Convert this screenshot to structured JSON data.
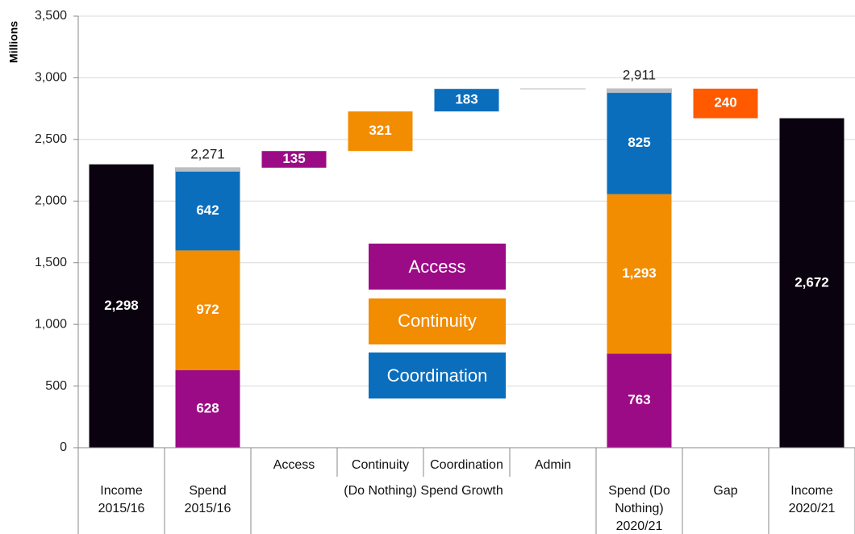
{
  "chart_data": {
    "type": "waterfall",
    "ylabel": "Millions",
    "ylim": [
      0,
      3500
    ],
    "yticks": [
      0,
      500,
      {
        "value": 1000,
        "label": "1,000"
      },
      {
        "value": 1500,
        "label": "1,500"
      },
      {
        "value": 2000,
        "label": "2,000"
      },
      {
        "value": 2500,
        "label": "2,500"
      },
      {
        "value": 3000,
        "label": "3,000"
      },
      {
        "value": 3500,
        "label": "3,500"
      }
    ],
    "grid": true,
    "categories": [
      "Income 2015/16",
      "Spend 2015/16",
      "Access",
      "Continuity",
      "Coordination",
      "Admin",
      "Spend (Do Nothing) 2020/21",
      "Gap",
      "Income 2020/21"
    ],
    "group": {
      "label": "(Do Nothing) Spend Growth",
      "members": [
        2,
        3,
        4,
        5
      ]
    },
    "measure": [
      "absolute",
      "absolute",
      "relative",
      "relative",
      "relative",
      "relative",
      "absolute",
      "difference",
      "absolute"
    ],
    "series": [
      {
        "color": "#0b0210",
        "values": [
          2298,
          null,
          null,
          null,
          null,
          null,
          null,
          null,
          2672
        ],
        "value_labels": [
          "2,298",
          null,
          null,
          null,
          null,
          null,
          null,
          null,
          "2,672"
        ]
      },
      {
        "name": "Access",
        "color": "#9c0b86",
        "values": [
          null,
          628,
          135,
          null,
          null,
          null,
          763,
          null,
          null
        ]
      },
      {
        "name": "Continuity",
        "color": "#f28c00",
        "values": [
          null,
          972,
          null,
          321,
          null,
          null,
          1293,
          null,
          null
        ],
        "value_labels": [
          null,
          null,
          null,
          null,
          null,
          null,
          "1,293",
          null,
          null
        ]
      },
      {
        "name": "Coordination",
        "color": "#0a6ebd",
        "values": [
          null,
          642,
          null,
          null,
          183,
          null,
          825,
          null,
          null
        ]
      },
      {
        "color": "#bcbec2",
        "values": [
          null,
          29,
          null,
          null,
          null,
          1,
          30,
          null,
          null
        ],
        "labels": false
      },
      {
        "color": "#ff5a00",
        "values": [
          null,
          null,
          null,
          null,
          null,
          null,
          null,
          240,
          null
        ]
      }
    ],
    "totals": [
      null,
      2271,
      null,
      null,
      null,
      null,
      2911,
      null,
      null
    ],
    "total_labels": [
      null,
      "2,271",
      null,
      null,
      null,
      null,
      "2,911",
      null,
      null
    ]
  }
}
